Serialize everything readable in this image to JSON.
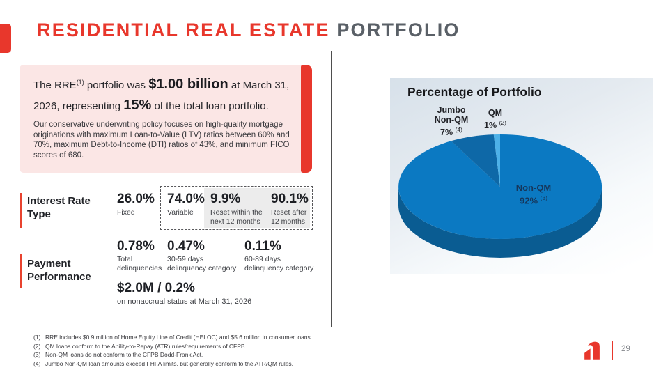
{
  "slide": {
    "title_red": "RESIDENTIAL REAL ESTATE",
    "title_gray": " PORTFOLIO",
    "page_number": "29"
  },
  "highlight": {
    "line_pre": "The RRE",
    "ref": "(1)",
    "mid1": " portfolio was ",
    "big1": "$1.00 billion",
    "mid2": " at March 31, 2026, representing ",
    "big2": "15%",
    "post": " of the total loan portfolio.",
    "paragraph": "Our conservative underwriting policy focuses on high-quality mortgage originations with maximum Loan-to-Value (LTV) ratios between 60% and 70%, maximum Debt-to-Income (DTI) ratios of 43%, and minimum FICO scores of 680."
  },
  "interest_rate": {
    "label_line1": "Interest Rate",
    "label_line2": "Type",
    "fixed": {
      "value": "26.0%",
      "label": "Fixed"
    },
    "variable": {
      "value": "74.0%",
      "label": "Variable"
    },
    "reset_within": {
      "value": "9.9%",
      "label1": "Reset within the",
      "label2": "next 12 months"
    },
    "reset_after": {
      "value": "90.1%",
      "label1": "Reset after",
      "label2": "12 months"
    }
  },
  "payment": {
    "label_line1": "Payment",
    "label_line2": "Performance",
    "total": {
      "value": "0.78%",
      "label1": "Total",
      "label2": "delinquencies"
    },
    "days3059": {
      "value": "0.47%",
      "label1": "30-59 days",
      "label2": "delinquency category"
    },
    "days6089": {
      "value": "0.11%",
      "label1": "60-89 days",
      "label2": "delinquency category"
    },
    "nonaccrual": {
      "value": "$2.0M / 0.2%",
      "label": "on nonaccrual status at March 31, 2026"
    }
  },
  "chart": {
    "title": "Percentage of Portfolio",
    "label_jumbo": {
      "line1": "Jumbo",
      "line2": "Non-QM",
      "value": "7% ",
      "ref": "(4)"
    },
    "label_qm": {
      "line1": "QM",
      "value": "1% ",
      "ref": "(2)"
    },
    "label_nonqm": {
      "line1": "Non-QM",
      "value": "92% ",
      "ref": "(3)"
    }
  },
  "chart_data": {
    "type": "pie",
    "title": "Percentage of Portfolio",
    "labels": [
      "Non-QM",
      "Jumbo Non-QM",
      "QM"
    ],
    "values": [
      92,
      7,
      1
    ],
    "footnote_refs": [
      "(3)",
      "(4)",
      "(2)"
    ],
    "colors": [
      "#0B79C2",
      "#0E68A7",
      "#4DB1E8"
    ],
    "depth_color": "#0A5C92",
    "style": "3d-pie",
    "start_angle_deg": 0,
    "direction": "clockwise",
    "legend": "none"
  },
  "footnotes": [
    {
      "num": "(1)",
      "text": "RRE includes $0.9 million of Home Equity Line of Credit (HELOC) and $5.6 million in consumer loans."
    },
    {
      "num": "(2)",
      "text": "QM loans conform to the Ability-to-Repay (ATR) rules/requirements of CFPB."
    },
    {
      "num": "(3)",
      "text": "Non-QM loans do not conform to the CFPB Dodd-Frank Act."
    },
    {
      "num": "(4)",
      "text": "Jumbo Non-QM loan amounts exceed FHFA limits, but generally conform to the ATR/QM rules."
    }
  ],
  "colors": {
    "brand_red": "#E8372C",
    "accent_red": "#E8432F",
    "title_gray": "#5A6067",
    "pink_bg": "#FBE6E5",
    "panel_gradient_top": "#D7E1EA"
  }
}
